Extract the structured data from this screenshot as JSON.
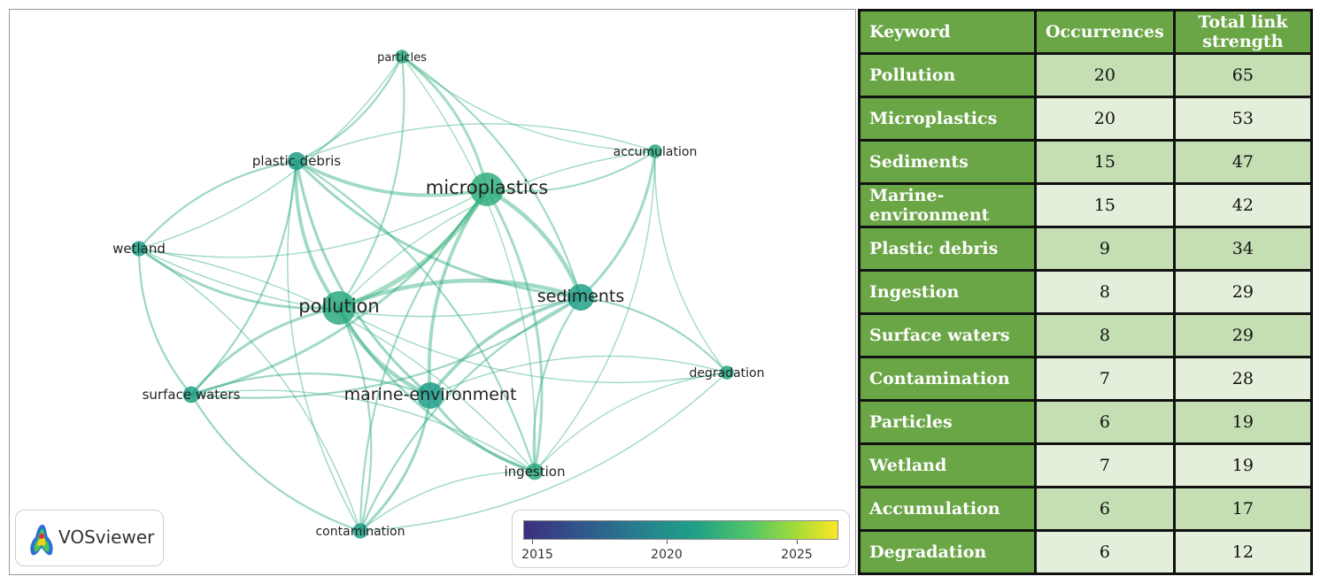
{
  "network": {
    "nodes": [
      {
        "id": "particles",
        "label": "particles",
        "weight": 6,
        "year": 2021.6
      },
      {
        "id": "accumulation",
        "label": "accumulation",
        "weight": 6,
        "year": 2021.4
      },
      {
        "id": "plastic-debris",
        "label": "plastic debris",
        "weight": 9,
        "year": 2020.8
      },
      {
        "id": "microplastics",
        "label": "microplastics",
        "weight": 20,
        "year": 2021.8
      },
      {
        "id": "wetland",
        "label": "wetland",
        "weight": 7,
        "year": 2020.9
      },
      {
        "id": "pollution",
        "label": "pollution",
        "weight": 20,
        "year": 2021.6
      },
      {
        "id": "sediments",
        "label": "sediments",
        "weight": 15,
        "year": 2021.0
      },
      {
        "id": "degradation",
        "label": "degradation",
        "weight": 6,
        "year": 2021.2
      },
      {
        "id": "surface-waters",
        "label": "surface waters",
        "weight": 8,
        "year": 2021.0
      },
      {
        "id": "marine-environment",
        "label": "marine-environment",
        "weight": 15,
        "year": 2020.8
      },
      {
        "id": "ingestion",
        "label": "ingestion",
        "weight": 8,
        "year": 2021.5
      },
      {
        "id": "contamination",
        "label": "contamination",
        "weight": 7,
        "year": 2020.9
      }
    ],
    "links": [
      [
        "pollution",
        "microplastics",
        6
      ],
      [
        "pollution",
        "sediments",
        5
      ],
      [
        "pollution",
        "marine-environment",
        5
      ],
      [
        "pollution",
        "plastic-debris",
        4
      ],
      [
        "pollution",
        "surface-waters",
        3
      ],
      [
        "pollution",
        "wetland",
        3
      ],
      [
        "pollution",
        "ingestion",
        3
      ],
      [
        "pollution",
        "contamination",
        2
      ],
      [
        "pollution",
        "particles",
        2
      ],
      [
        "pollution",
        "accumulation",
        1
      ],
      [
        "pollution",
        "degradation",
        1
      ],
      [
        "microplastics",
        "sediments",
        5
      ],
      [
        "microplastics",
        "marine-environment",
        4
      ],
      [
        "microplastics",
        "plastic-debris",
        4
      ],
      [
        "microplastics",
        "particles",
        3
      ],
      [
        "microplastics",
        "ingestion",
        3
      ],
      [
        "microplastics",
        "accumulation",
        2
      ],
      [
        "microplastics",
        "surface-waters",
        3
      ],
      [
        "microplastics",
        "contamination",
        2
      ],
      [
        "microplastics",
        "wetland",
        1
      ],
      [
        "sediments",
        "marine-environment",
        4
      ],
      [
        "sediments",
        "plastic-debris",
        3
      ],
      [
        "sediments",
        "accumulation",
        3
      ],
      [
        "sediments",
        "degradation",
        2
      ],
      [
        "sediments",
        "ingestion",
        2
      ],
      [
        "sediments",
        "surface-waters",
        2
      ],
      [
        "sediments",
        "particles",
        2
      ],
      [
        "sediments",
        "wetland",
        1
      ],
      [
        "sediments",
        "contamination",
        2
      ],
      [
        "marine-environment",
        "plastic-debris",
        3
      ],
      [
        "marine-environment",
        "ingestion",
        3
      ],
      [
        "marine-environment",
        "contamination",
        3
      ],
      [
        "marine-environment",
        "surface-waters",
        2
      ],
      [
        "marine-environment",
        "degradation",
        1
      ],
      [
        "plastic-debris",
        "wetland",
        2
      ],
      [
        "plastic-debris",
        "surface-waters",
        2
      ],
      [
        "plastic-debris",
        "particles",
        2
      ],
      [
        "plastic-debris",
        "ingestion",
        2
      ],
      [
        "plastic-debris",
        "contamination",
        1
      ],
      [
        "plastic-debris",
        "accumulation",
        1
      ],
      [
        "wetland",
        "surface-waters",
        2
      ],
      [
        "wetland",
        "contamination",
        1
      ],
      [
        "wetland",
        "particles",
        1
      ],
      [
        "wetland",
        "ingestion",
        1
      ],
      [
        "surface-waters",
        "contamination",
        2
      ],
      [
        "surface-waters",
        "ingestion",
        1
      ],
      [
        "particles",
        "accumulation",
        1
      ],
      [
        "particles",
        "ingestion",
        1
      ],
      [
        "accumulation",
        "degradation",
        1
      ],
      [
        "accumulation",
        "ingestion",
        1
      ],
      [
        "ingestion",
        "contamination",
        1
      ],
      [
        "ingestion",
        "degradation",
        1
      ],
      [
        "contamination",
        "degradation",
        1
      ]
    ]
  },
  "logo": {
    "text": "VOSviewer"
  },
  "time_scale": {
    "ticks": [
      "2015",
      "2020",
      "2025"
    ],
    "min": 2014,
    "max": 2026.8
  },
  "table": {
    "headers": [
      "Keyword",
      "Occurrences",
      "Total link strength"
    ],
    "rows": [
      {
        "keyword": "Pollution",
        "occurrences": "20",
        "strength": "65"
      },
      {
        "keyword": "Microplastics",
        "occurrences": "20",
        "strength": "53"
      },
      {
        "keyword": "Sediments",
        "occurrences": "15",
        "strength": "47"
      },
      {
        "keyword": "Marine-environment",
        "occurrences": "15",
        "strength": "42"
      },
      {
        "keyword": "Plastic debris",
        "occurrences": "9",
        "strength": "34"
      },
      {
        "keyword": "Ingestion",
        "occurrences": "8",
        "strength": "29"
      },
      {
        "keyword": "Surface waters",
        "occurrences": "8",
        "strength": "29"
      },
      {
        "keyword": "Contamination",
        "occurrences": "7",
        "strength": "28"
      },
      {
        "keyword": "Particles",
        "occurrences": "6",
        "strength": "19"
      },
      {
        "keyword": "Wetland",
        "occurrences": "7",
        "strength": "19"
      },
      {
        "keyword": "Accumulation",
        "occurrences": "6",
        "strength": "17"
      },
      {
        "keyword": "Degradation",
        "occurrences": "6",
        "strength": "12"
      }
    ]
  }
}
